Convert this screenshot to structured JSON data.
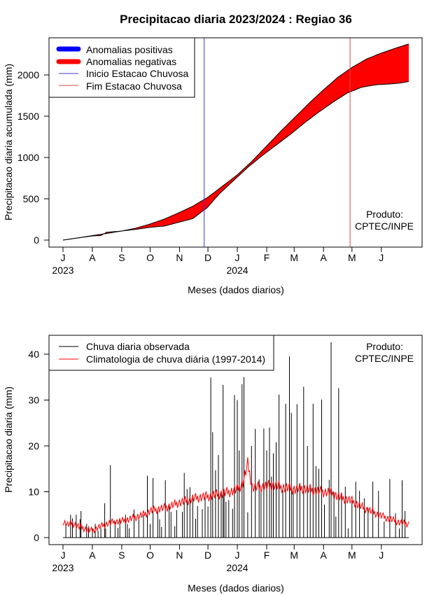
{
  "title": "Precipitacao diaria 2023/2024 : Regiao 36",
  "colors": {
    "positive": "#0000ff",
    "negative": "#ff0000",
    "start_line": "#3b3bd6",
    "end_line": "#d94b4b",
    "observed_bar": "#000000",
    "climatology": "#ff0000",
    "axis": "#000000"
  },
  "chart_data": [
    {
      "type": "area",
      "ylabel": "Precipitacao diaria acumulada (mm)",
      "xlabel": "Meses (dados diarios)",
      "x_ticks": [
        "J",
        "A",
        "S",
        "O",
        "N",
        "D",
        "J",
        "F",
        "M",
        "A",
        "M",
        "J"
      ],
      "year_labels": [
        "2023",
        "2024"
      ],
      "ylim": [
        0,
        2400
      ],
      "y_ticks": [
        0,
        500,
        1000,
        1500,
        2000
      ],
      "note_lines": [
        "Produto:",
        "CPTEC/INPE"
      ],
      "legend": [
        "Anomalias positivas",
        "Anomalias negativas",
        "Inicio Estacao Chuvosa",
        "Fim Estacao Chuvosa"
      ],
      "legend_position": "top-left",
      "start_season_day": 149,
      "end_season_day": 303,
      "series": [
        {
          "name": "climatology_cumulative",
          "x": [
            0,
            15,
            31,
            46,
            62,
            77,
            92,
            107,
            122,
            137,
            153,
            168,
            184,
            199,
            215,
            230,
            245,
            260,
            275,
            290,
            305,
            320,
            335,
            350,
            365
          ],
          "values": [
            0,
            25,
            55,
            80,
            110,
            145,
            195,
            255,
            330,
            410,
            520,
            650,
            790,
            950,
            1140,
            1320,
            1490,
            1660,
            1820,
            1970,
            2090,
            2190,
            2260,
            2320,
            2375
          ]
        },
        {
          "name": "observed_cumulative",
          "x": [
            0,
            15,
            31,
            40,
            46,
            62,
            77,
            92,
            107,
            122,
            137,
            145,
            152,
            165,
            180,
            195,
            210,
            225,
            240,
            255,
            270,
            285,
            300,
            315,
            330,
            345,
            355,
            365
          ],
          "values": [
            0,
            25,
            50,
            55,
            95,
            110,
            130,
            155,
            170,
            215,
            260,
            330,
            390,
            560,
            720,
            880,
            1020,
            1150,
            1280,
            1420,
            1550,
            1670,
            1780,
            1850,
            1880,
            1890,
            1900,
            1920
          ]
        }
      ]
    },
    {
      "type": "bar",
      "ylabel": "Precipitacao diaria (mm)",
      "xlabel": "Meses (dados diarios)",
      "x_ticks": [
        "J",
        "A",
        "S",
        "O",
        "N",
        "D",
        "J",
        "F",
        "M",
        "A",
        "M",
        "J"
      ],
      "year_labels": [
        "2023",
        "2024"
      ],
      "ylim": [
        0,
        44
      ],
      "y_ticks": [
        0,
        10,
        20,
        30,
        40
      ],
      "note_lines": [
        "Produto:",
        "CPTEC/INPE"
      ],
      "legend": [
        "Chuva diaria observada",
        "Climatologia de chuva diária (1997-2014)"
      ],
      "legend_position": "top-left",
      "observed_peaks": {
        "day": [
          3,
          8,
          10,
          14,
          18,
          19,
          25,
          27,
          31,
          34,
          37,
          40,
          44,
          45,
          50,
          55,
          58,
          60,
          66,
          68,
          70,
          75,
          80,
          85,
          89,
          92,
          95,
          100,
          102,
          104,
          108,
          112,
          114,
          118,
          120,
          126,
          128,
          131,
          134,
          137,
          140,
          142,
          147,
          150,
          153,
          156,
          158,
          161,
          164,
          167,
          169,
          170,
          172,
          175,
          179,
          181,
          184,
          186,
          189,
          191,
          195,
          199,
          203,
          207,
          209,
          212,
          215,
          218,
          220,
          222,
          225,
          228,
          232,
          235,
          239,
          241,
          243,
          247,
          250,
          254,
          258,
          261,
          264,
          267,
          270,
          273,
          276,
          281,
          283,
          286,
          288,
          291,
          294,
          298,
          301,
          305,
          309,
          313,
          318,
          322,
          327,
          333,
          339,
          345,
          351,
          355,
          358,
          361
        ],
        "values": [
          3,
          5,
          4.2,
          5,
          4,
          5.8,
          3,
          2.5,
          2,
          3,
          1.5,
          2,
          7.5,
          2,
          15.8,
          3.5,
          2.1,
          4,
          5,
          3,
          2,
          6.1,
          4,
          5,
          13.5,
          3,
          13,
          6.1,
          4,
          2.3,
          12.5,
          7,
          5.6,
          2.5,
          6,
          5.6,
          14.1,
          10.6,
          11,
          8.6,
          4.1,
          6.9,
          6.2,
          9.4,
          6.8,
          34.9,
          23,
          14.7,
          18,
          9.8,
          33.3,
          10,
          7.8,
          8.2,
          6.3,
          31.1,
          30,
          19,
          33.5,
          35,
          5.5,
          20,
          23.7,
          12.7,
          10,
          23.8,
          19,
          24,
          13.3,
          18.4,
          20.8,
          31.2,
          10.3,
          29.2,
          39.5,
          27.2,
          10.7,
          29.1,
          11.9,
          32.9,
          20,
          10.9,
          29.2,
          15.6,
          15,
          30.1,
          7.2,
          12.6,
          42.6,
          10,
          4.6,
          32.6,
          9.3,
          11.1,
          2,
          8.1,
          12.2,
          10.2,
          8.6,
          6.5,
          12.2,
          10.2,
          3.5,
          12.8,
          5.3,
          2,
          12.5,
          5.8
        ]
      },
      "series": [
        {
          "name": "Climatologia de chuva diária (1997-2014)",
          "x": [
            0,
            5,
            10,
            15,
            20,
            25,
            31,
            38,
            46,
            53,
            62,
            70,
            77,
            85,
            92,
            100,
            107,
            115,
            122,
            130,
            137,
            145,
            153,
            160,
            168,
            176,
            184,
            190,
            195,
            200,
            207,
            215,
            222,
            230,
            238,
            245,
            252,
            260,
            267,
            275,
            283,
            290,
            297,
            305,
            313,
            320,
            328,
            335,
            343,
            350,
            357,
            365
          ],
          "values": [
            3.5,
            2.8,
            3.2,
            2.5,
            2.2,
            1.8,
            1.5,
            2.3,
            3.0,
            3.4,
            3.6,
            4.0,
            4.5,
            5.0,
            5.8,
            6.2,
            6.5,
            7.0,
            7.6,
            8.0,
            8.5,
            8.8,
            9.0,
            9.3,
            9.6,
            10.0,
            10.5,
            12.0,
            16.0,
            11.0,
            11.0,
            11.2,
            11.5,
            11.0,
            10.8,
            10.5,
            10.8,
            10.5,
            10.2,
            10.0,
            9.8,
            9.0,
            8.5,
            8.0,
            7.0,
            6.2,
            5.5,
            4.8,
            4.2,
            3.7,
            3.2,
            3.0
          ]
        }
      ]
    }
  ]
}
